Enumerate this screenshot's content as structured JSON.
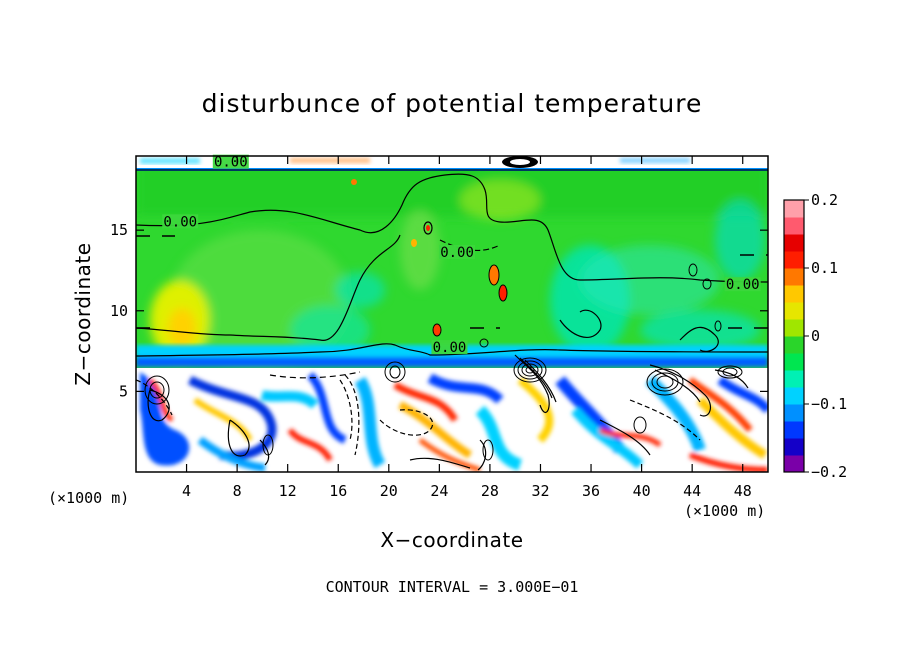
{
  "chart_data": {
    "type": "heatmap",
    "title": "disturbunce of potential temperature",
    "xlabel": "X−coordinate",
    "ylabel": "Z−coordinate",
    "x_unit_left": "(×1000 m)",
    "x_unit_right": "(×1000 m)",
    "xlim": [
      0,
      50
    ],
    "ylim": [
      0,
      19.6
    ],
    "x_ticks": [
      4,
      8,
      12,
      16,
      20,
      24,
      28,
      32,
      36,
      40,
      44,
      48
    ],
    "x_tick_labels": [
      "4",
      "8",
      "12",
      "16",
      "20",
      "24",
      "28",
      "32",
      "36",
      "40",
      "44",
      "48"
    ],
    "y_ticks": [
      5,
      10,
      15
    ],
    "y_tick_labels": [
      "5",
      "10",
      "15"
    ],
    "colorbar": {
      "min": -0.2,
      "max": 0.2,
      "tick_values": [
        0.2,
        0.1,
        0,
        -0.1,
        -0.2
      ],
      "tick_labels": [
        "0.2",
        "0.1",
        "0",
        "−0.1",
        "−0.2"
      ],
      "colors": [
        "#7a00a8",
        "#1400c8",
        "#0038ff",
        "#0090ff",
        "#00d2ff",
        "#00f0b4",
        "#00e650",
        "#2ad52a",
        "#a0e600",
        "#e6e600",
        "#ffc800",
        "#ff7800",
        "#ff1e00",
        "#e60000",
        "#ff5a6e",
        "#ffa0aa"
      ]
    },
    "contour_labels": [
      {
        "text": "0.00",
        "x": 7.5,
        "z": 19.0
      },
      {
        "text": "0.00",
        "x": 3.5,
        "z": 15.3
      },
      {
        "text": "0.00",
        "x": 25.4,
        "z": 13.4
      },
      {
        "text": "0.00",
        "x": 48.0,
        "z": 11.4
      },
      {
        "text": "0.00",
        "x": 24.8,
        "z": 7.5
      }
    ],
    "contour_interval_text": "CONTOUR INTERVAL = 3.000E−01",
    "legend": "colorbar right",
    "grid": false
  }
}
